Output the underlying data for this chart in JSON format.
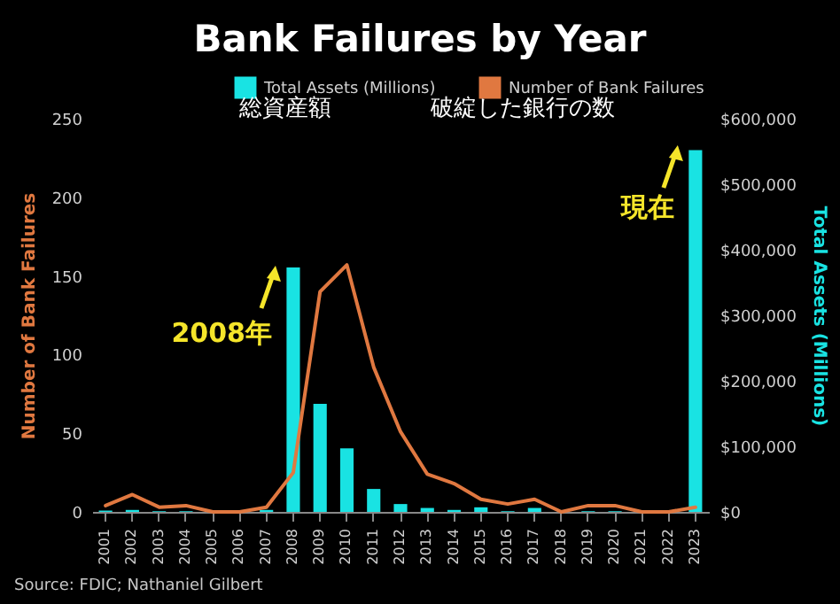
{
  "chart_data": {
    "type": "bar",
    "title": "Bank Failures by Year",
    "categories": [
      "2001",
      "2002",
      "2003",
      "2004",
      "2005",
      "2006",
      "2007",
      "2008",
      "2009",
      "2010",
      "2011",
      "2012",
      "2013",
      "2014",
      "2015",
      "2016",
      "2017",
      "2018",
      "2019",
      "2020",
      "2021",
      "2022",
      "2023"
    ],
    "series": [
      {
        "name": "Total Assets (Millions)",
        "axis": "y2",
        "color": "#19e3e3",
        "values": [
          2000,
          3000,
          1000,
          1000,
          0,
          0,
          3000,
          373000,
          165000,
          97000,
          35000,
          12000,
          6000,
          3000,
          7000,
          1000,
          6000,
          0,
          1000,
          1000,
          0,
          0,
          552000
        ]
      },
      {
        "name": "Number of Bank Failures",
        "type": "line",
        "color": "#e07840",
        "values": [
          4,
          11,
          3,
          4,
          0,
          0,
          3,
          25,
          140,
          157,
          92,
          51,
          24,
          18,
          8,
          5,
          8,
          0,
          4,
          4,
          0,
          0,
          3
        ]
      }
    ],
    "ylabel": "Number of Bank Failures",
    "y2label": "Total Assets (Millions)",
    "ylim": [
      0,
      250
    ],
    "yticks": [
      0,
      50,
      100,
      150,
      200,
      250
    ],
    "y2lim": [
      0,
      600000
    ],
    "y2ticks": [
      {
        "value": 0,
        "label": "$0"
      },
      {
        "value": 100000,
        "label": "$100,000"
      },
      {
        "value": 200000,
        "label": "$200,000"
      },
      {
        "value": 300000,
        "label": "$300,000"
      },
      {
        "value": 400000,
        "label": "$400,000"
      },
      {
        "value": 500000,
        "label": "$500,000"
      },
      {
        "value": 600000,
        "label": "$600,000"
      }
    ],
    "legend": "top",
    "grid": false,
    "annotations": [
      "総資産額",
      "破綻した銀行の数",
      {
        "text": "2008年",
        "x": "2008"
      },
      {
        "text": "現在",
        "x": "2023"
      },
      "Source: FDIC; Nathaniel Gilbert"
    ]
  }
}
